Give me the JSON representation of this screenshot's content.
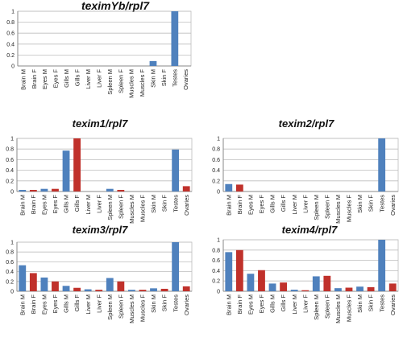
{
  "colors": {
    "male": "#4f81bd",
    "female": "#c0312b"
  },
  "chart_data": [
    {
      "type": "bar",
      "title": "teximYb/rpl7",
      "categories": [
        "Brain M",
        "Brain F",
        "Eyes M",
        "Eyes F",
        "Gills M",
        "Gills F",
        "Liver M",
        "Liver F",
        "Spleen M",
        "Spleen F",
        "Muscles M",
        "Muscles F",
        "Skin M",
        "Skin F",
        "Testes",
        "Ovaries"
      ],
      "values": [
        0,
        0,
        0,
        0,
        0,
        0,
        0,
        0,
        0,
        0,
        0,
        0,
        0.09,
        0,
        1.0,
        0
      ],
      "ylim": [
        0,
        1
      ],
      "yticks": [
        "0",
        "0.2",
        "0.4",
        "0.6",
        "0.8",
        "1"
      ],
      "grid": true
    },
    {
      "type": "bar",
      "title": "texim1/rpl7",
      "categories": [
        "Brain M",
        "Brain F",
        "Eyes M",
        "Eyes F",
        "Gills M",
        "Gills F",
        "Liver M",
        "Liver F",
        "Spleen M",
        "Spleen F",
        "Muscles M",
        "Muscles F",
        "Skin M",
        "Skin F",
        "Testes",
        "Ovaries"
      ],
      "values": [
        0.03,
        0.03,
        0.05,
        0.05,
        0.77,
        1.0,
        0,
        0,
        0.05,
        0.03,
        0,
        0,
        0,
        0,
        0.79,
        0.1
      ],
      "ylim": [
        0,
        1
      ],
      "yticks": [
        "0",
        "0.2",
        "0.4",
        "0.6",
        "0.8",
        "1"
      ],
      "grid": true
    },
    {
      "type": "bar",
      "title": "texim2/rpl7",
      "categories": [
        "Brain M",
        "Brain F",
        "Eyes M",
        "Eyes F",
        "Gills M",
        "Gills F",
        "Liver M",
        "Liver F",
        "Spleen M",
        "Spleen F",
        "Muscles M",
        "Muscles F",
        "Skin M",
        "Skin F",
        "Testes",
        "Ovaries"
      ],
      "values": [
        0.14,
        0.13,
        0,
        0,
        0,
        0,
        0,
        0,
        0,
        0,
        0,
        0,
        0,
        0,
        1.0,
        0
      ],
      "ylim": [
        0,
        1
      ],
      "yticks": [
        "0",
        "0.2",
        "0.4",
        "0.6",
        "0.8",
        "1"
      ],
      "grid": true
    },
    {
      "type": "bar",
      "title": "texim3/rpl7",
      "categories": [
        "Brain M",
        "Brain F",
        "Eyes M",
        "Eyes F",
        "Gills M",
        "Gills F",
        "Liver M",
        "Liver F",
        "Spleen M",
        "Spleen F",
        "Muscles M",
        "Muscles F",
        "Skin M",
        "Skin F",
        "Testes",
        "Ovaries"
      ],
      "values": [
        0.53,
        0.37,
        0.28,
        0.2,
        0.11,
        0.07,
        0.04,
        0.03,
        0.27,
        0.2,
        0.03,
        0.03,
        0.06,
        0.05,
        1.0,
        0.1
      ],
      "ylim": [
        0,
        1
      ],
      "yticks": [
        "0",
        "0.2",
        "0.4",
        "0.6",
        "0.8",
        "1"
      ],
      "grid": true
    },
    {
      "type": "bar",
      "title": "texim4/rpl7",
      "categories": [
        "Brain M",
        "Brain F",
        "Eyes M",
        "Eyes F",
        "Gills M",
        "Gills F",
        "Liver M",
        "Liver F",
        "Spleen M",
        "Spleen F",
        "Muscles M",
        "Muscles F",
        "Skin M",
        "Skin F",
        "Testes",
        "Ovaries"
      ],
      "values": [
        0.76,
        0.8,
        0.34,
        0.41,
        0.15,
        0.17,
        0.03,
        0.02,
        0.29,
        0.3,
        0.06,
        0.07,
        0.09,
        0.08,
        1.0,
        0.15
      ],
      "ylim": [
        0,
        1
      ],
      "yticks": [
        "0",
        "0.2",
        "0.4",
        "0.6",
        "0.8",
        "1"
      ],
      "grid": true
    }
  ]
}
